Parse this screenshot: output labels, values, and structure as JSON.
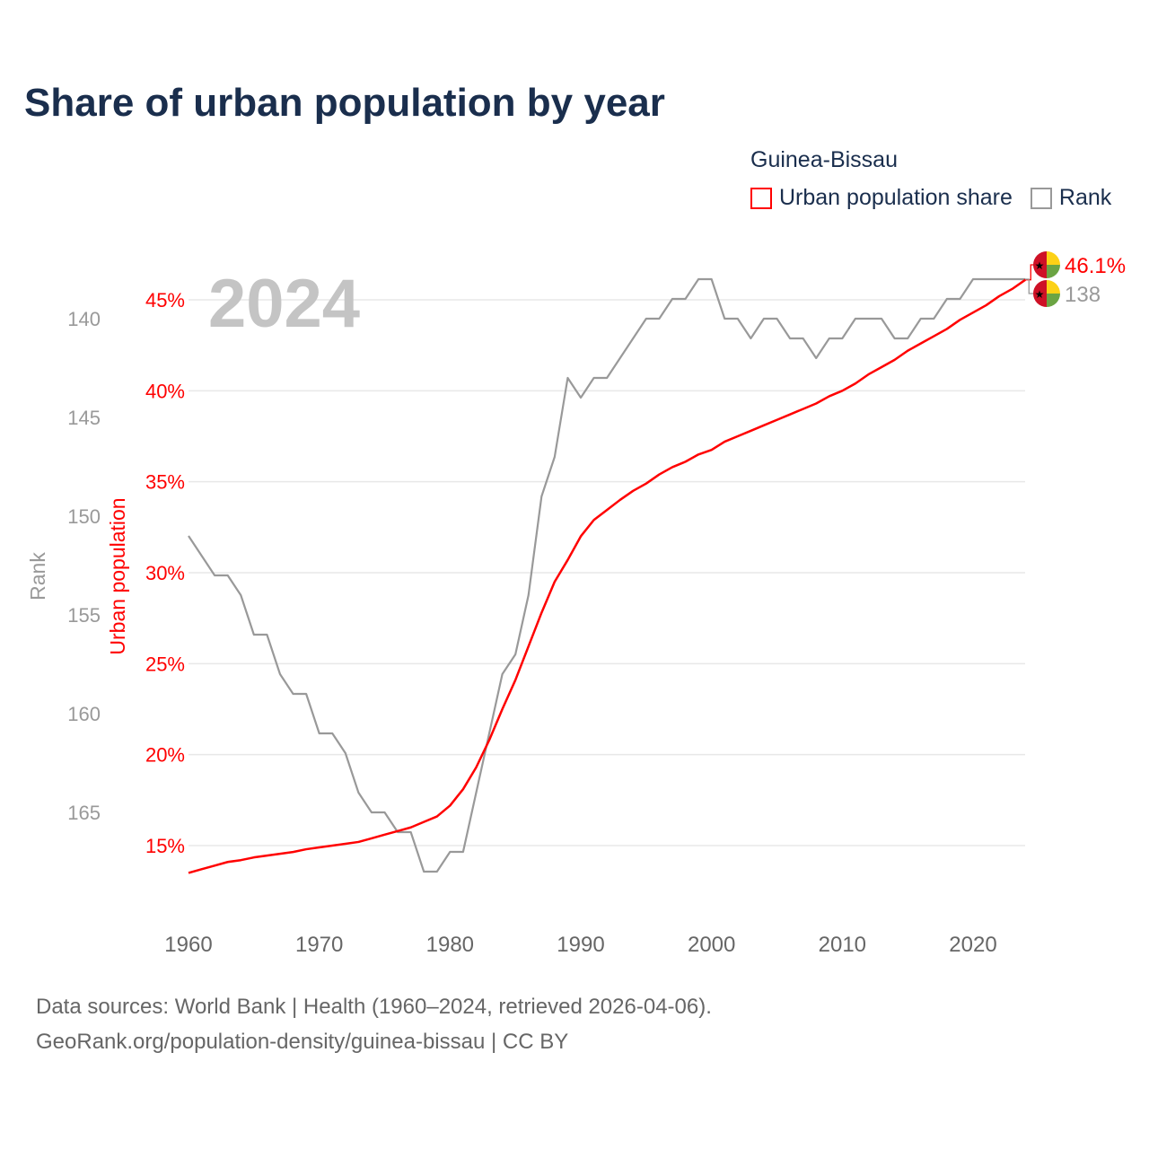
{
  "title": "Share of urban population by year",
  "legend": {
    "title": "Guinea-Bissau",
    "items": [
      {
        "label": "Urban population share",
        "color": "#ff0000"
      },
      {
        "label": "Rank",
        "color": "#999999"
      }
    ]
  },
  "footer": {
    "line1": "Data sources: World Bank | Health (1960–2024, retrieved 2026-04-06).",
    "line2": "GeoRank.org/population-density/guinea-bissau | CC BY"
  },
  "chart_data": {
    "type": "line",
    "title": "Share of urban population by year",
    "year_label": "2024",
    "xlabel": "",
    "ylabel_left": "Urban population",
    "ylabel_right": "Rank",
    "xlim": [
      1960,
      2024
    ],
    "x_ticks": [
      1960,
      1970,
      1980,
      1990,
      2000,
      2010,
      2020
    ],
    "y_left_ticks": [
      "15%",
      "20%",
      "25%",
      "30%",
      "35%",
      "40%",
      "45%"
    ],
    "y_left_tick_values": [
      15,
      20,
      25,
      30,
      35,
      40,
      45
    ],
    "y_rank_ticks": [
      140,
      145,
      150,
      155,
      160,
      165
    ],
    "grid": true,
    "legend_position": "top-right",
    "x": [
      1960,
      1961,
      1962,
      1963,
      1964,
      1965,
      1966,
      1967,
      1968,
      1969,
      1970,
      1971,
      1972,
      1973,
      1974,
      1975,
      1976,
      1977,
      1978,
      1979,
      1980,
      1981,
      1982,
      1983,
      1984,
      1985,
      1986,
      1987,
      1988,
      1989,
      1990,
      1991,
      1992,
      1993,
      1994,
      1995,
      1996,
      1997,
      1998,
      1999,
      2000,
      2001,
      2002,
      2003,
      2004,
      2005,
      2006,
      2007,
      2008,
      2009,
      2010,
      2011,
      2012,
      2013,
      2014,
      2015,
      2016,
      2017,
      2018,
      2019,
      2020,
      2021,
      2022,
      2023,
      2024
    ],
    "series": [
      {
        "name": "Urban population share",
        "axis": "left",
        "color": "#ff0000",
        "values": [
          13.5,
          13.7,
          13.9,
          14.1,
          14.2,
          14.35,
          14.45,
          14.55,
          14.65,
          14.8,
          14.9,
          15.0,
          15.1,
          15.2,
          15.4,
          15.6,
          15.8,
          16.0,
          16.3,
          16.6,
          17.2,
          18.1,
          19.3,
          20.8,
          22.5,
          24.1,
          25.95,
          27.8,
          29.5,
          30.7,
          32.0,
          32.9,
          33.45,
          34.0,
          34.5,
          34.9,
          35.4,
          35.8,
          36.1,
          36.5,
          36.75,
          37.2,
          37.5,
          37.8,
          38.1,
          38.4,
          38.7,
          39.0,
          39.3,
          39.7,
          40.0,
          40.4,
          40.9,
          41.3,
          41.7,
          42.2,
          42.6,
          43.0,
          43.4,
          43.9,
          44.3,
          44.7,
          45.2,
          45.6,
          46.1
        ],
        "end_label": "46.1%"
      },
      {
        "name": "Rank",
        "axis": "right",
        "color": "#999999",
        "values": [
          151,
          152,
          153,
          153,
          154,
          156,
          156,
          158,
          159,
          159,
          161,
          161,
          162,
          164,
          165,
          165,
          166,
          166,
          168,
          168,
          167,
          167,
          164,
          161,
          158,
          157,
          154,
          149,
          147,
          143,
          144,
          143,
          143,
          142,
          141,
          140,
          140,
          139,
          139,
          138,
          138,
          140,
          140,
          141,
          140,
          140,
          141,
          141,
          142,
          141,
          141,
          140,
          140,
          140,
          141,
          141,
          140,
          140,
          139,
          139,
          138,
          138,
          138,
          138,
          138
        ],
        "end_label": "138"
      }
    ]
  }
}
